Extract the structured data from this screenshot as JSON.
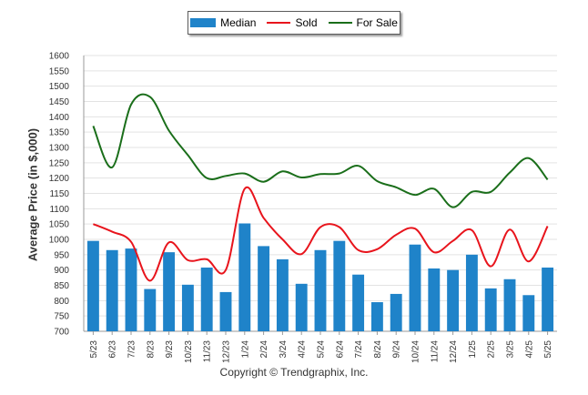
{
  "chart_data": {
    "type": "bar",
    "categories": [
      "5/23",
      "6/23",
      "7/23",
      "8/23",
      "9/23",
      "10/23",
      "11/23",
      "12/23",
      "1/24",
      "2/24",
      "3/24",
      "4/24",
      "5/24",
      "6/24",
      "7/24",
      "8/24",
      "9/24",
      "10/24",
      "11/24",
      "12/24",
      "1/25",
      "2/25",
      "3/25",
      "4/25",
      "5/25"
    ],
    "series": [
      {
        "name": "Median",
        "kind": "bar",
        "color": "#1f83c9",
        "values": [
          995,
          965,
          970,
          838,
          958,
          852,
          908,
          828,
          1052,
          978,
          935,
          855,
          965,
          995,
          885,
          795,
          822,
          983,
          905,
          900,
          950,
          840,
          870,
          818,
          908
        ]
      },
      {
        "name": "Sold",
        "kind": "line",
        "color": "#e8141c",
        "values": [
          1050,
          1025,
          992,
          865,
          990,
          932,
          935,
          900,
          1165,
          1070,
          1000,
          952,
          1040,
          1040,
          965,
          968,
          1015,
          1035,
          958,
          995,
          1030,
          912,
          1032,
          928,
          1043
        ]
      },
      {
        "name": "For Sale",
        "kind": "line",
        "color": "#1a6e1a",
        "values": [
          1370,
          1235,
          1440,
          1465,
          1355,
          1275,
          1200,
          1207,
          1215,
          1188,
          1222,
          1202,
          1213,
          1215,
          1240,
          1190,
          1170,
          1145,
          1165,
          1105,
          1155,
          1155,
          1218,
          1265,
          1195
        ]
      }
    ],
    "yticks": [
      700,
      750,
      800,
      850,
      900,
      950,
      1000,
      1050,
      1100,
      1150,
      1200,
      1250,
      1300,
      1350,
      1400,
      1450,
      1500,
      1550,
      1600
    ],
    "ylim": [
      700,
      1600
    ],
    "ylabel": "Average Price (in $,000)",
    "xlabel": "",
    "grid": true,
    "legend_position": "top-center"
  },
  "legend": {
    "median_label": "Median",
    "sold_label": "Sold",
    "forsale_label": "For Sale"
  },
  "footer": {
    "copyright": "Copyright © Trendgraphix, Inc."
  }
}
